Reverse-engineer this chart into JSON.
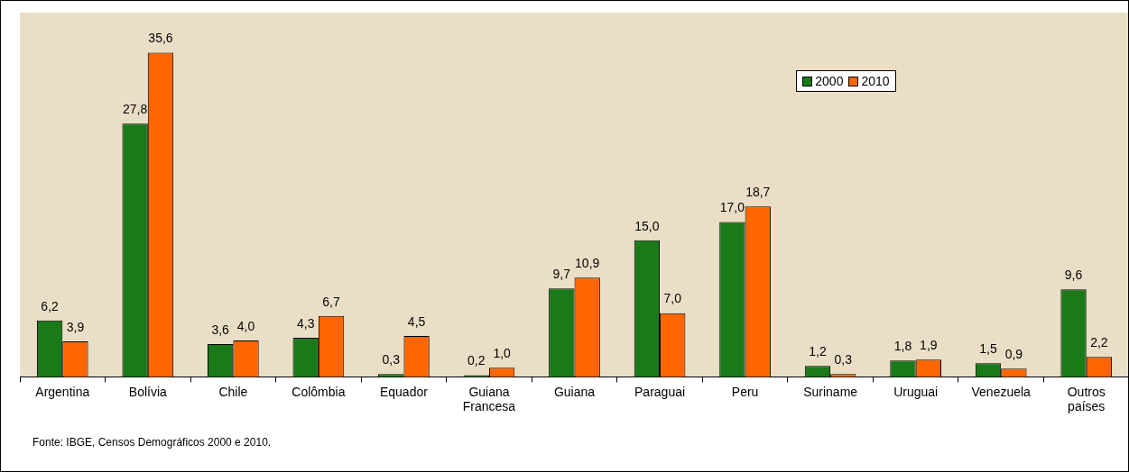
{
  "chart_data": {
    "type": "bar",
    "categories": [
      "Argentina",
      "Bolívia",
      "Chile",
      "Colômbia",
      "Equador",
      "Guiana Francesa",
      "Guiana",
      "Paraguai",
      "Peru",
      "Suriname",
      "Uruguai",
      "Venezuela",
      "Outros países"
    ],
    "series": [
      {
        "name": "2000",
        "color": "#1a7a1a",
        "values": [
          6.2,
          27.8,
          3.6,
          4.3,
          0.3,
          0.2,
          9.7,
          15.0,
          17.0,
          1.2,
          1.8,
          1.5,
          9.6
        ],
        "value_labels": [
          "6,2",
          "27,8",
          "3,6",
          "4,3",
          "0,3",
          "0,2",
          "9,7",
          "15,0",
          "17,0",
          "1,2",
          "1,8",
          "1,5",
          "9,6"
        ]
      },
      {
        "name": "2010",
        "color": "#ff6600",
        "values": [
          3.9,
          35.6,
          4.0,
          6.7,
          4.5,
          1.0,
          10.9,
          7.0,
          18.7,
          0.3,
          1.9,
          0.9,
          2.2
        ],
        "value_labels": [
          "3,9",
          "35,6",
          "4,0",
          "6,7",
          "4,5",
          "1,0",
          "10,9",
          "7,0",
          "18,7",
          "0,3",
          "1,9",
          "0,9",
          "2,2"
        ]
      }
    ],
    "legend": "top right",
    "grid": false,
    "annotations": [
      "Fonte: IBGE, Censos Demográficos 2000 e 2010."
    ]
  }
}
